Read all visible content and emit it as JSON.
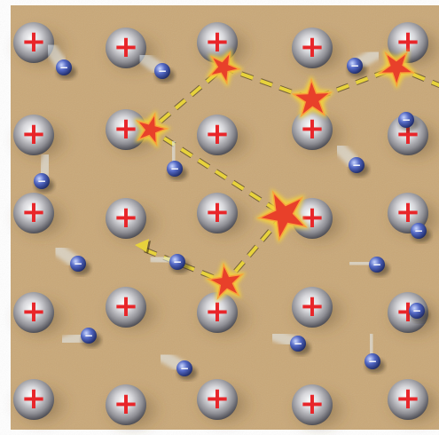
{
  "diagram": {
    "colors": {
      "background": "#c9a878",
      "ion_body": "#9e9ea3",
      "ion_sign": "#e8262a",
      "electron": "#3b4f9e",
      "collision": "#e8402a",
      "collision_glow": "#f6d23a",
      "path": "#e7d23c"
    },
    "ion_sign_text": "+",
    "electron_sign_text": "−",
    "ions": [
      {
        "col": 0,
        "row": 0
      },
      {
        "col": 1,
        "row": 0
      },
      {
        "col": 2,
        "row": 0
      },
      {
        "col": 3,
        "row": 0
      },
      {
        "col": 4,
        "row": 0
      },
      {
        "col": 0,
        "row": 1
      },
      {
        "col": 1,
        "row": 1
      },
      {
        "col": 2,
        "row": 1
      },
      {
        "col": 3,
        "row": 1
      },
      {
        "col": 4,
        "row": 1
      },
      {
        "col": 0,
        "row": 2
      },
      {
        "col": 1,
        "row": 2
      },
      {
        "col": 2,
        "row": 2
      },
      {
        "col": 3,
        "row": 2
      },
      {
        "col": 4,
        "row": 2
      },
      {
        "col": 0,
        "row": 3
      },
      {
        "col": 1,
        "row": 3
      },
      {
        "col": 2,
        "row": 3
      },
      {
        "col": 3,
        "row": 3
      },
      {
        "col": 4,
        "row": 3
      },
      {
        "col": 0,
        "row": 4
      },
      {
        "col": 1,
        "row": 4
      },
      {
        "col": 2,
        "row": 4
      },
      {
        "col": 3,
        "row": 4
      },
      {
        "col": 4,
        "row": 4
      }
    ],
    "electron_count": 16,
    "collision_count": 6,
    "path_arrow": "left"
  }
}
